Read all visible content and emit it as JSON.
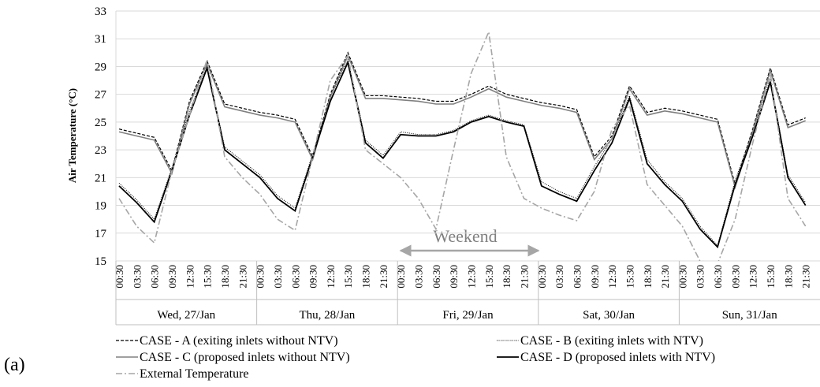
{
  "chart_data": {
    "type": "line",
    "y_label": "Air Temperature (°C)",
    "annotation": "Weekend",
    "panel_label": "(a)",
    "categories": [
      "00:30",
      "03:30",
      "06:30",
      "09:30",
      "12:30",
      "15:30",
      "18:30",
      "21:30",
      "00:30",
      "03:30",
      "06:30",
      "09:30",
      "12:30",
      "15:30",
      "18:30",
      "21:30",
      "00:30",
      "03:30",
      "06:30",
      "09:30",
      "12:30",
      "15:30",
      "18:30",
      "21:30",
      "00:30",
      "03:30",
      "06:30",
      "09:30",
      "12:30",
      "15:30",
      "18:30",
      "21:30",
      "00:30",
      "03:30",
      "06:30",
      "09:30",
      "12:30",
      "15:30",
      "18:30",
      "21:30"
    ],
    "x_groups": [
      "Wed, 27/Jan",
      "Thu, 28/Jan",
      "Fri, 29/Jan",
      "Sat, 30/Jan",
      "Sun, 31/Jan"
    ],
    "ylim": [
      15,
      33
    ],
    "yticks": [
      15,
      17,
      19,
      21,
      23,
      25,
      27,
      29,
      31,
      33
    ],
    "grid": true,
    "series": [
      {
        "name": "CASE - A (exiting inlets without NTV)",
        "color": "#000000",
        "dash": "4,2",
        "width": 1.2,
        "values": [
          24.5,
          24.2,
          23.9,
          21.5,
          26.5,
          29.4,
          26.3,
          26.0,
          25.7,
          25.5,
          25.2,
          22.5,
          27.0,
          30.0,
          26.9,
          26.9,
          26.8,
          26.7,
          26.5,
          26.5,
          27.0,
          27.6,
          27.0,
          26.7,
          26.4,
          26.2,
          25.9,
          22.5,
          24.0,
          27.6,
          25.7,
          26.0,
          25.8,
          25.5,
          25.2,
          20.5,
          24.5,
          28.9,
          24.8,
          25.3
        ]
      },
      {
        "name": "CASE - B (exiting inlets with NTV)",
        "color": "#000000",
        "dash": "1,1.5",
        "width": 1,
        "values": [
          20.6,
          19.4,
          18.0,
          21.7,
          25.8,
          29.0,
          23.2,
          22.2,
          21.2,
          19.7,
          18.8,
          22.7,
          26.8,
          29.5,
          23.7,
          22.6,
          24.3,
          24.1,
          24.1,
          24.4,
          25.1,
          25.5,
          25.1,
          24.8,
          20.7,
          20.0,
          19.5,
          21.8,
          23.8,
          26.9,
          22.3,
          20.7,
          19.5,
          17.5,
          16.1,
          20.8,
          24.3,
          28.1,
          21.2,
          19.2
        ]
      },
      {
        "name": "CASE - C (proposed inlets without NTV)",
        "color": "#808080",
        "dash": "none",
        "width": 1.6,
        "values": [
          24.3,
          24.0,
          23.7,
          21.3,
          26.3,
          29.2,
          26.1,
          25.8,
          25.5,
          25.3,
          25.0,
          22.3,
          26.8,
          29.8,
          26.7,
          26.7,
          26.6,
          26.5,
          26.3,
          26.3,
          26.8,
          27.4,
          26.8,
          26.5,
          26.2,
          26.0,
          25.7,
          22.3,
          23.8,
          27.4,
          25.5,
          25.8,
          25.6,
          25.3,
          25.0,
          20.3,
          24.3,
          28.7,
          24.6,
          25.1
        ]
      },
      {
        "name": "CASE - D (proposed inlets with NTV)",
        "color": "#000000",
        "dash": "none",
        "width": 1.8,
        "values": [
          20.4,
          19.2,
          17.8,
          21.5,
          25.5,
          28.9,
          23.0,
          22.0,
          21.0,
          19.5,
          18.6,
          22.5,
          26.5,
          29.3,
          23.5,
          22.4,
          24.1,
          24.0,
          24.0,
          24.3,
          25.0,
          25.4,
          25.0,
          24.7,
          20.4,
          19.8,
          19.3,
          21.5,
          23.5,
          26.7,
          22.0,
          20.5,
          19.3,
          17.3,
          16.0,
          20.5,
          24.0,
          27.9,
          21.0,
          19.0
        ]
      },
      {
        "name": "External Temperature",
        "color": "#a6a6a6",
        "dash": "8,3,2,3",
        "width": 1.6,
        "values": [
          19.5,
          17.5,
          16.3,
          21.5,
          25.5,
          29.5,
          22.5,
          21.0,
          19.8,
          18.0,
          17.2,
          22.5,
          28.0,
          29.8,
          23.0,
          22.0,
          21.0,
          19.5,
          17.3,
          23.0,
          28.5,
          31.5,
          22.5,
          19.5,
          18.8,
          18.3,
          17.9,
          20.0,
          24.5,
          26.2,
          20.5,
          19.0,
          17.5,
          15.0,
          14.8,
          18.0,
          23.5,
          28.5,
          19.5,
          17.5
        ]
      }
    ]
  }
}
